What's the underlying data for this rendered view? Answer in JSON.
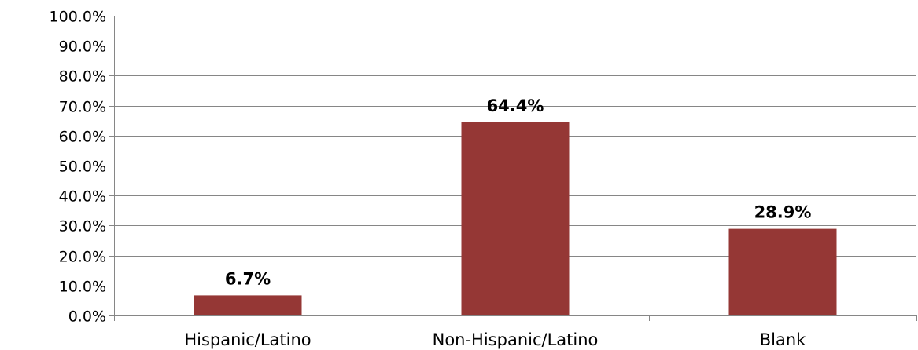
{
  "chart_data": {
    "type": "bar",
    "categories": [
      "Hispanic/Latino",
      "Non-Hispanic/Latino",
      "Blank"
    ],
    "values": [
      6.7,
      64.4,
      28.9
    ],
    "data_labels": [
      "6.7%",
      "64.4%",
      "28.9%"
    ],
    "ylim": [
      0,
      100
    ],
    "yticks": [
      0,
      10,
      20,
      30,
      40,
      50,
      60,
      70,
      80,
      90,
      100
    ],
    "ytick_labels": [
      "0.0%",
      "10.0%",
      "20.0%",
      "30.0%",
      "40.0%",
      "50.0%",
      "60.0%",
      "70.0%",
      "80.0%",
      "90.0%",
      "100.0%"
    ],
    "grid": true,
    "legend": "none",
    "title": "",
    "xlabel": "",
    "ylabel": "",
    "bar_color": "#953735",
    "grid_color": "#868686"
  }
}
